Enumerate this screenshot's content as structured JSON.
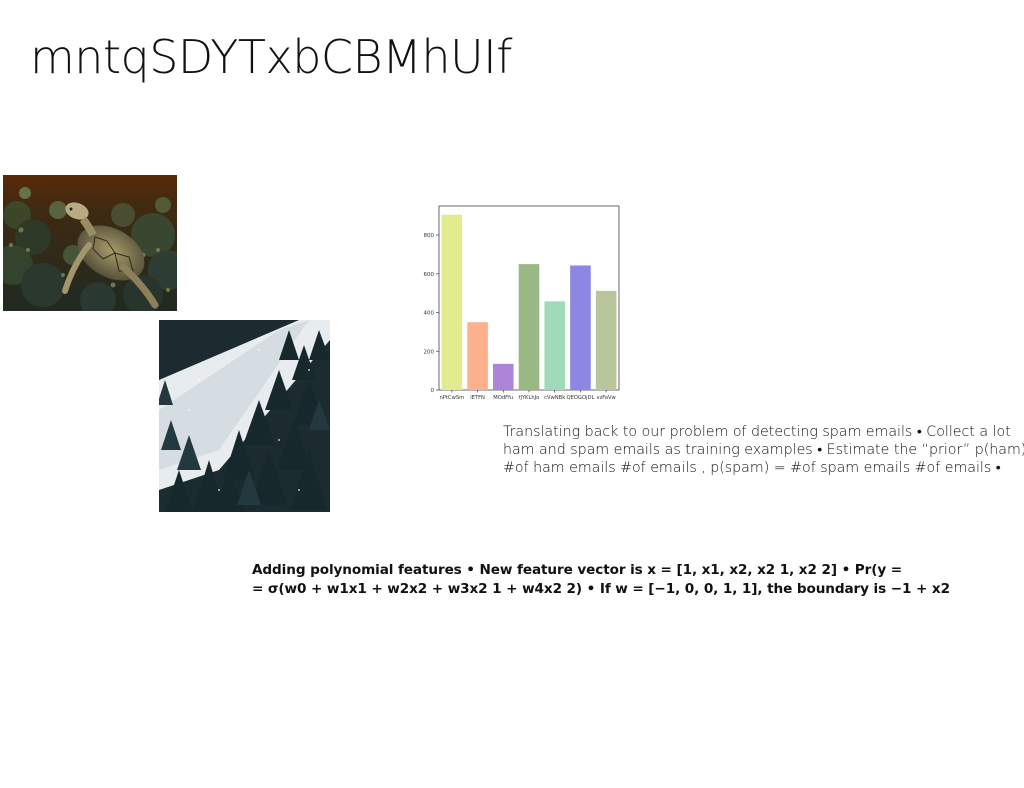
{
  "slide": {
    "title": "mntqSDYTxbCBMhUIf",
    "paragraph1": {
      "lines": [
        "Translating back to our problem of detecting spam emails • Collect a lot",
        "ham and spam emails as training examples • Estimate the “prior” p(ham)",
        "#of ham emails #of emails , p(spam) = #of spam emails #of emails •"
      ]
    },
    "paragraph2": {
      "lines": [
        "Adding polynomial features • New feature vector is x = [1, x1, x2, x2 1, x2 2] • Pr(y =",
        "= σ(w0 + w1x1 + w2x2 + w3x2 1 + w4x2 2) • If w = [−1, 0, 0, 1, 1], the boundary is −1 + x2"
      ]
    },
    "images": {
      "turtle": "sea-turtle-photo",
      "forest": "snowy-forest-photo"
    }
  },
  "chart_data": {
    "type": "bar",
    "categories": [
      "nPtCwSm",
      "lETFN",
      "MOdFfu",
      "fjYKLhJo",
      "cVwNBk",
      "QEOGOjDL",
      "vzFaVw"
    ],
    "values": [
      905,
      350,
      135,
      650,
      458,
      643,
      512
    ],
    "colors": [
      "#e2ec8e",
      "#fdb08c",
      "#ac85d9",
      "#9ab884",
      "#9fdbbb",
      "#8d86e2",
      "#b9c69d"
    ],
    "yticks": [
      0,
      200,
      400,
      600,
      800
    ],
    "ylim": [
      0,
      950
    ],
    "title": "",
    "xlabel": "",
    "ylabel": "",
    "grid": false
  }
}
